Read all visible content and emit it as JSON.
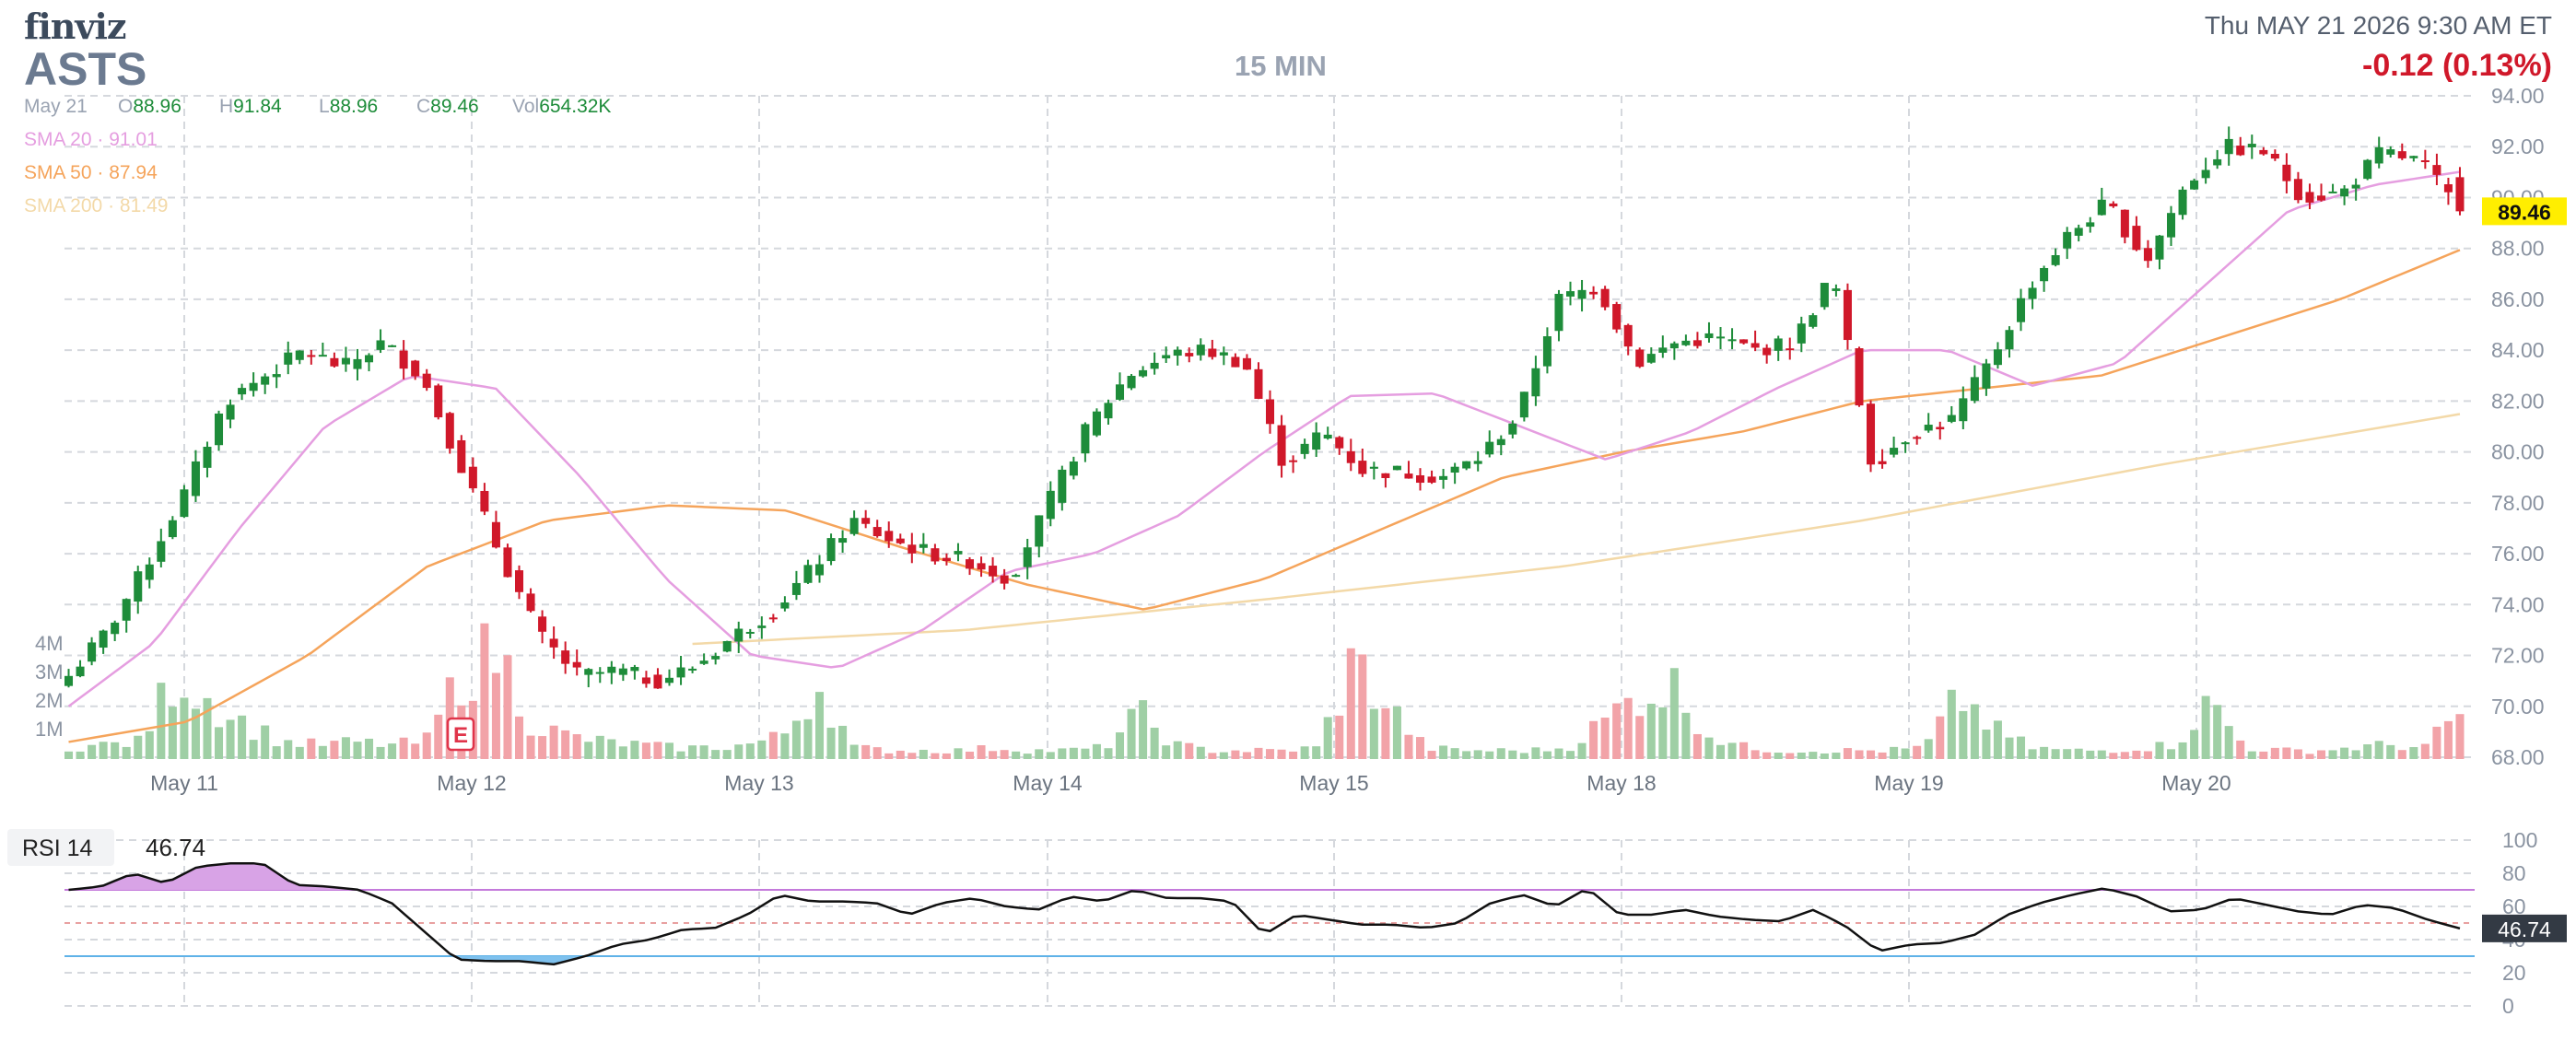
{
  "header": {
    "brand": "finviz",
    "ticker": "ASTS",
    "timeframe": "15 MIN",
    "datetime": "Thu MAY 21 2026 9:30 AM ET",
    "change": "-0.12 (0.13%)"
  },
  "ohlc": {
    "date": "May 21",
    "open_label": "O",
    "open": "88.96",
    "high_label": "H",
    "high": "91.84",
    "low_label": "L",
    "low": "88.96",
    "close_label": "C",
    "close": "89.46",
    "vol_label": "Vol",
    "vol": "654.32K"
  },
  "sma": [
    {
      "label": "SMA 20",
      "sep": "·",
      "value": "91.01",
      "color": "#e59ee0"
    },
    {
      "label": "SMA 50",
      "sep": "·",
      "value": "87.94",
      "color": "#f5a45b"
    },
    {
      "label": "SMA 200",
      "sep": "·",
      "value": "81.49",
      "color": "#f3d9a8"
    }
  ],
  "earnings_marker": "E",
  "rsi": {
    "label": "RSI 14",
    "value": "46.74",
    "badge": "46.74"
  },
  "colors": {
    "up": "#1e8c3a",
    "down": "#d0182a",
    "vol_up": "#9fcfa5",
    "vol_down": "#f2a3a8",
    "grid": "#d5d8dd",
    "rsi_line": "#111111",
    "rsi_upper": "#c47adb",
    "rsi_lower": "#5fb2e8",
    "price_badge": "#ffee00"
  },
  "chart_data": [
    {
      "type": "candlestick",
      "title": "ASTS",
      "xlabel": "",
      "ylabel": "",
      "x_ticks": [
        "May 11",
        "May 12",
        "May 13",
        "May 14",
        "May 15",
        "May 18",
        "May 19",
        "May 20"
      ],
      "y_ticks": [
        "68.00",
        "70.00",
        "72.00",
        "74.00",
        "76.00",
        "78.00",
        "80.00",
        "82.00",
        "84.00",
        "86.00",
        "88.00",
        "90.00",
        "92.00",
        "94.00"
      ],
      "ylim": [
        68,
        94
      ],
      "volume_ticks": [
        "1M",
        "2M",
        "3M",
        "4M"
      ],
      "grid": true,
      "last_price": "89.46",
      "close_path": [
        {
          "day": "May 8",
          "close": 71.2
        },
        {
          "day": "May 8",
          "close": 73.0
        },
        {
          "day": "May 8",
          "close": 75.6
        },
        {
          "day": "May 11",
          "close": 78.5
        },
        {
          "day": "May 11",
          "close": 82.0
        },
        {
          "day": "May 11",
          "close": 83.0
        },
        {
          "day": "May 11",
          "close": 84.0
        },
        {
          "day": "May 11",
          "close": 83.3
        },
        {
          "day": "May 11",
          "close": 84.3
        },
        {
          "day": "May 11",
          "close": 83.0
        },
        {
          "day": "May 12",
          "close": 79.5
        },
        {
          "day": "May 12",
          "close": 76.0
        },
        {
          "day": "May 12",
          "close": 72.8
        },
        {
          "day": "May 12",
          "close": 71.2
        },
        {
          "day": "May 12",
          "close": 71.4
        },
        {
          "day": "May 12",
          "close": 71.0
        },
        {
          "day": "May 12",
          "close": 71.6
        },
        {
          "day": "May 13",
          "close": 72.8
        },
        {
          "day": "May 13",
          "close": 73.8
        },
        {
          "day": "May 13",
          "close": 75.5
        },
        {
          "day": "May 13",
          "close": 77.3
        },
        {
          "day": "May 13",
          "close": 76.5
        },
        {
          "day": "May 13",
          "close": 76.0
        },
        {
          "day": "May 13",
          "close": 75.7
        },
        {
          "day": "May 14",
          "close": 75.0
        },
        {
          "day": "May 14",
          "close": 78.0
        },
        {
          "day": "May 14",
          "close": 81.0
        },
        {
          "day": "May 14",
          "close": 83.0
        },
        {
          "day": "May 14",
          "close": 83.8
        },
        {
          "day": "May 14",
          "close": 84.0
        },
        {
          "day": "May 14",
          "close": 83.5
        },
        {
          "day": "May 15",
          "close": 79.5
        },
        {
          "day": "May 15",
          "close": 80.8
        },
        {
          "day": "May 15",
          "close": 79.3
        },
        {
          "day": "May 15",
          "close": 79.2
        },
        {
          "day": "May 15",
          "close": 79.0
        },
        {
          "day": "May 15",
          "close": 79.8
        },
        {
          "day": "May 15",
          "close": 81.5
        },
        {
          "day": "May 18",
          "close": 86.0
        },
        {
          "day": "May 18",
          "close": 86.5
        },
        {
          "day": "May 18",
          "close": 83.5
        },
        {
          "day": "May 18",
          "close": 84.3
        },
        {
          "day": "May 18",
          "close": 84.5
        },
        {
          "day": "May 18",
          "close": 84.0
        },
        {
          "day": "May 18",
          "close": 84.3
        },
        {
          "day": "May 18",
          "close": 87.0
        },
        {
          "day": "May 19",
          "close": 79.5
        },
        {
          "day": "May 19",
          "close": 80.8
        },
        {
          "day": "May 19",
          "close": 81.2
        },
        {
          "day": "May 19",
          "close": 83.5
        },
        {
          "day": "May 19",
          "close": 86.5
        },
        {
          "day": "May 19",
          "close": 88.5
        },
        {
          "day": "May 19",
          "close": 89.8
        },
        {
          "day": "May 20",
          "close": 87.5
        },
        {
          "day": "May 20",
          "close": 90.5
        },
        {
          "day": "May 20",
          "close": 92.0
        },
        {
          "day": "May 20",
          "close": 91.8
        },
        {
          "day": "May 20",
          "close": 90.0
        },
        {
          "day": "May 20",
          "close": 90.2
        },
        {
          "day": "May 20",
          "close": 91.8
        },
        {
          "day": "May 20",
          "close": 91.4
        },
        {
          "day": "May 21",
          "close": 89.46
        }
      ],
      "sma20_path": [
        {
          "day": "May 8",
          "close": 70.0
        },
        {
          "day": "May 11",
          "close": 72.5
        },
        {
          "day": "May 11",
          "close": 77.0
        },
        {
          "day": "May 11",
          "close": 81.0
        },
        {
          "day": "May 11",
          "close": 83.0
        },
        {
          "day": "May 12",
          "close": 82.5
        },
        {
          "day": "May 12",
          "close": 79.0
        },
        {
          "day": "May 12",
          "close": 75.0
        },
        {
          "day": "May 12",
          "close": 72.0
        },
        {
          "day": "May 13",
          "close": 71.5
        },
        {
          "day": "May 13",
          "close": 73.0
        },
        {
          "day": "May 13",
          "close": 75.3
        },
        {
          "day": "May 14",
          "close": 76.0
        },
        {
          "day": "May 14",
          "close": 77.5
        },
        {
          "day": "May 14",
          "close": 80.0
        },
        {
          "day": "May 14",
          "close": 82.2
        },
        {
          "day": "May 15",
          "close": 82.3
        },
        {
          "day": "May 15",
          "close": 81.0
        },
        {
          "day": "May 15",
          "close": 79.7
        },
        {
          "day": "May 18",
          "close": 80.8
        },
        {
          "day": "May 18",
          "close": 82.5
        },
        {
          "day": "May 18",
          "close": 84.0
        },
        {
          "day": "May 19",
          "close": 84.0
        },
        {
          "day": "May 19",
          "close": 82.6
        },
        {
          "day": "May 19",
          "close": 83.5
        },
        {
          "day": "May 20",
          "close": 86.5
        },
        {
          "day": "May 20",
          "close": 89.5
        },
        {
          "day": "May 20",
          "close": 90.5
        },
        {
          "day": "May 21",
          "close": 91.01
        }
      ],
      "sma50_path": [
        {
          "day": "May 8",
          "close": 68.6
        },
        {
          "day": "May 11",
          "close": 69.4
        },
        {
          "day": "May 11",
          "close": 72.0
        },
        {
          "day": "May 11",
          "close": 75.5
        },
        {
          "day": "May 12",
          "close": 77.3
        },
        {
          "day": "May 12",
          "close": 77.9
        },
        {
          "day": "May 13",
          "close": 77.7
        },
        {
          "day": "May 13",
          "close": 76.2
        },
        {
          "day": "May 14",
          "close": 74.8
        },
        {
          "day": "May 14",
          "close": 73.8
        },
        {
          "day": "May 14",
          "close": 75.0
        },
        {
          "day": "May 14",
          "close": 77.0
        },
        {
          "day": "May 15",
          "close": 79.0
        },
        {
          "day": "May 15",
          "close": 80.0
        },
        {
          "day": "May 18",
          "close": 80.8
        },
        {
          "day": "May 18",
          "close": 82.0
        },
        {
          "day": "May 19",
          "close": 82.5
        },
        {
          "day": "May 19",
          "close": 83.0
        },
        {
          "day": "May 20",
          "close": 84.5
        },
        {
          "day": "May 20",
          "close": 86.0
        },
        {
          "day": "May 21",
          "close": 87.94
        }
      ],
      "sma200_path": [
        {
          "day": "May 11",
          "close": 71.7
        },
        {
          "day": "May 12",
          "close": 72.1
        },
        {
          "day": "May 13",
          "close": 72.4
        },
        {
          "day": "May 14",
          "close": 73.0
        },
        {
          "day": "May 15",
          "close": 74.2
        },
        {
          "day": "May 18",
          "close": 75.5
        },
        {
          "day": "May 19",
          "close": 77.3
        },
        {
          "day": "May 20",
          "close": 79.5
        },
        {
          "day": "May 21",
          "close": 81.49
        }
      ],
      "volume_path": [
        0.4,
        0.5,
        0.6,
        3.0,
        2.0,
        1.2,
        0.6,
        0.5,
        0.6,
        0.5,
        0.6,
        3.0,
        3.8,
        1.2,
        0.8,
        0.6,
        0.5,
        0.4,
        0.4,
        0.5,
        0.8,
        2.6,
        0.4,
        0.3,
        0.3,
        0.3,
        0.4,
        0.3,
        0.3,
        0.4,
        1.6,
        0.5,
        0.3,
        0.3,
        0.3,
        0.4,
        3.4,
        1.8,
        0.4,
        0.3,
        0.3,
        0.3,
        0.4,
        1.3,
        2.3,
        2.5,
        0.8,
        0.4,
        0.3,
        0.3,
        0.3,
        0.3,
        0.4,
        2.2,
        1.0,
        0.4,
        0.3,
        0.3,
        0.4,
        0.5,
        2.0,
        0.4,
        0.3,
        0.3,
        0.4,
        0.5,
        0.4,
        1.6
      ]
    },
    {
      "type": "line",
      "title": "RSI 14",
      "y_ticks": [
        "0",
        "20",
        "40",
        "60",
        "80",
        "100"
      ],
      "ylim": [
        0,
        100
      ],
      "upper_band": 70,
      "lower_band": 30,
      "mid_line": 50,
      "last_value": "46.74",
      "values": [
        70,
        72,
        80,
        74,
        84,
        86,
        86,
        73,
        72,
        70,
        62,
        45,
        28,
        27,
        27,
        25,
        30,
        37,
        40,
        46,
        47,
        55,
        67,
        63,
        63,
        62,
        55,
        62,
        65,
        60,
        58,
        66,
        63,
        70,
        65,
        65,
        63,
        43,
        55,
        52,
        49,
        49,
        47,
        50,
        62,
        67,
        60,
        71,
        55,
        55,
        58,
        54,
        52,
        51,
        58,
        48,
        33,
        37,
        38,
        43,
        55,
        62,
        67,
        71,
        66,
        57,
        58,
        65,
        61,
        57,
        55,
        61,
        59,
        52,
        46.74
      ]
    }
  ]
}
